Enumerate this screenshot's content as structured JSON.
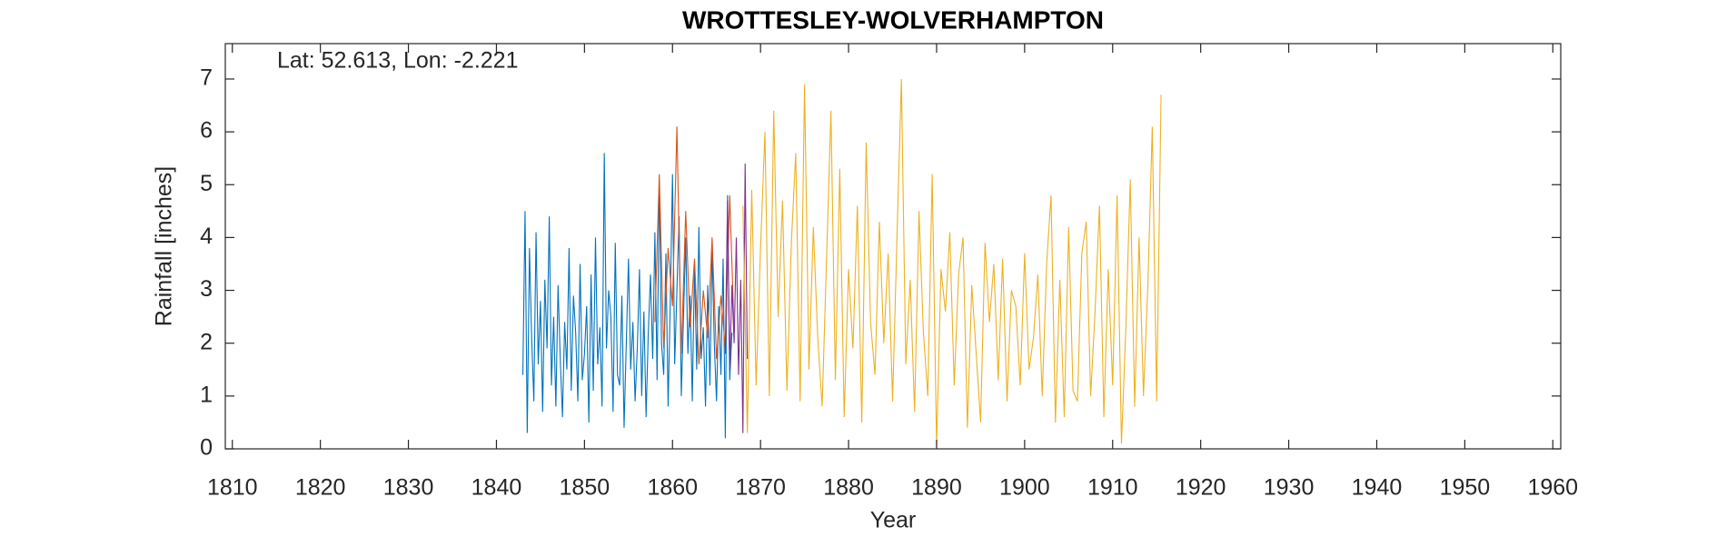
{
  "chart_data": {
    "type": "line",
    "title": "WROTTESLEY-WOLVERHAMPTON",
    "annotation": "Lat: 52.613, Lon: -2.221",
    "x_label": "Year",
    "y_label": "Rainfall [inches]",
    "xlim": [
      1809.2,
      1960.9
    ],
    "ylim": [
      0,
      7.67
    ],
    "xticks": [
      1810,
      1820,
      1830,
      1840,
      1850,
      1860,
      1870,
      1880,
      1890,
      1900,
      1910,
      1920,
      1930,
      1940,
      1950,
      1960
    ],
    "yticks": [
      0,
      1,
      2,
      3,
      4,
      5,
      6,
      7
    ],
    "grid": false,
    "series": [
      {
        "color": "#0072BD",
        "x": [
          1843,
          1843.25,
          1843.5,
          1843.75,
          1844,
          1844.25,
          1844.5,
          1844.75,
          1845,
          1845.25,
          1845.5,
          1845.75,
          1846,
          1846.25,
          1846.5,
          1846.75,
          1847,
          1847.25,
          1847.5,
          1847.75,
          1848,
          1848.25,
          1848.5,
          1848.75,
          1849,
          1849.25,
          1849.5,
          1849.75,
          1850,
          1850.25,
          1850.5,
          1850.75,
          1851,
          1851.25,
          1851.5,
          1851.75,
          1852,
          1852.25,
          1852.5,
          1852.75,
          1853,
          1853.25,
          1853.5,
          1853.75,
          1854,
          1854.25,
          1854.5,
          1854.75,
          1855,
          1855.25,
          1855.5,
          1855.75,
          1856,
          1856.25,
          1856.5,
          1856.75,
          1857,
          1857.25,
          1857.5,
          1857.75,
          1858,
          1858.25,
          1858.5,
          1858.75,
          1859,
          1859.25,
          1859.5,
          1859.75,
          1860,
          1860.25,
          1860.5,
          1860.75,
          1861,
          1861.25,
          1861.5,
          1861.75,
          1862,
          1862.25,
          1862.5,
          1862.75,
          1863,
          1863.25,
          1863.5,
          1863.75,
          1864,
          1864.25,
          1864.5,
          1864.75,
          1865,
          1865.25,
          1865.5,
          1865.75,
          1866,
          1866.25,
          1866.5,
          1866.75
        ],
        "values": [
          1.4,
          4.5,
          0.3,
          3.8,
          2.1,
          0.9,
          4.1,
          1.6,
          2.8,
          0.7,
          3.2,
          1.9,
          4.4,
          1.2,
          2.5,
          0.8,
          3.1,
          1.7,
          0.6,
          2.4,
          1.5,
          3.8,
          1.1,
          2.9,
          2.2,
          0.9,
          3.5,
          1.3,
          1.8,
          2.7,
          0.5,
          3.3,
          1.1,
          4.0,
          1.6,
          2.3,
          0.8,
          5.6,
          1.9,
          3.0,
          2.5,
          0.7,
          3.9,
          1.4,
          1.2,
          2.9,
          0.4,
          2.0,
          3.6,
          1.5,
          2.4,
          0.9,
          1.9,
          3.4,
          1.0,
          2.6,
          0.6,
          2.2,
          3.3,
          1.7,
          4.1,
          1.3,
          5.1,
          2.0,
          1.4,
          3.7,
          0.8,
          2.8,
          5.2,
          1.6,
          3.0,
          4.4,
          1.0,
          2.5,
          4.0,
          1.8,
          2.9,
          0.9,
          3.5,
          1.5,
          4.2,
          1.7,
          2.3,
          0.8,
          3.1,
          1.2,
          3.8,
          2.0,
          0.9,
          2.7,
          1.4,
          3.6,
          0.2,
          4.8,
          1.3,
          2.2
        ]
      },
      {
        "color": "#D95319",
        "x": [
          1858,
          1858.5,
          1859,
          1859.5,
          1860,
          1860.5,
          1861,
          1861.5,
          1862,
          1862.5,
          1863,
          1863.5,
          1864,
          1864.5,
          1865,
          1865.5,
          1866,
          1866.5,
          1867
        ],
        "values": [
          2.4,
          5.2,
          1.9,
          3.8,
          2.7,
          6.1,
          1.8,
          4.5,
          2.3,
          3.6,
          1.6,
          3.0,
          2.1,
          4.0,
          1.7,
          2.9,
          1.9,
          4.8,
          2.2
        ]
      },
      {
        "color": "#7E2F8E",
        "x": [
          1866,
          1866.25,
          1866.5,
          1866.75,
          1867,
          1867.25,
          1867.5,
          1867.75,
          1868,
          1868.25,
          1868.5
        ],
        "values": [
          1.8,
          4.7,
          1.5,
          3.1,
          2.0,
          4.0,
          1.4,
          3.2,
          0.3,
          5.4,
          1.7
        ]
      },
      {
        "color": "#EDB120",
        "x": [
          1868,
          1868.5,
          1869,
          1869.5,
          1870,
          1870.5,
          1871,
          1871.5,
          1872,
          1872.5,
          1873,
          1873.5,
          1874,
          1874.5,
          1875,
          1875.5,
          1876,
          1876.5,
          1877,
          1877.5,
          1878,
          1878.5,
          1879,
          1879.5,
          1880,
          1880.5,
          1881,
          1881.5,
          1882,
          1882.5,
          1883,
          1883.5,
          1884,
          1884.5,
          1885,
          1885.5,
          1886,
          1886.5,
          1887,
          1887.5,
          1888,
          1888.5,
          1889,
          1889.5,
          1890,
          1890.5,
          1891,
          1891.5,
          1892,
          1892.5,
          1893,
          1893.5,
          1894,
          1894.5,
          1895,
          1895.5,
          1896,
          1896.5,
          1897,
          1897.5,
          1898,
          1898.5,
          1899,
          1899.5,
          1900,
          1900.5,
          1901,
          1901.5,
          1902,
          1902.5,
          1903,
          1903.5,
          1904,
          1904.5,
          1905,
          1905.5,
          1906,
          1906.5,
          1907,
          1907.5,
          1908,
          1908.5,
          1909,
          1909.5,
          1910,
          1910.5,
          1911,
          1911.5,
          1912,
          1912.5,
          1913,
          1913.5,
          1914,
          1914.5,
          1915,
          1915.5
        ],
        "values": [
          4.6,
          0.3,
          4.9,
          1.2,
          3.8,
          6.0,
          1.0,
          6.4,
          2.5,
          4.7,
          1.1,
          3.9,
          5.6,
          0.9,
          6.9,
          1.5,
          4.2,
          2.1,
          0.8,
          3.6,
          6.4,
          1.3,
          5.3,
          0.6,
          3.4,
          1.9,
          4.6,
          0.5,
          5.8,
          2.4,
          1.4,
          4.3,
          2.0,
          3.7,
          0.9,
          4.0,
          7.0,
          1.6,
          3.2,
          0.7,
          4.5,
          2.2,
          1.0,
          5.2,
          0.05,
          3.4,
          2.6,
          4.1,
          1.2,
          3.3,
          4.0,
          0.4,
          3.1,
          1.8,
          0.5,
          3.9,
          2.4,
          3.5,
          1.3,
          3.6,
          0.9,
          3.0,
          2.7,
          1.2,
          3.7,
          1.5,
          2.1,
          3.3,
          1.0,
          3.5,
          4.8,
          0.5,
          3.2,
          0.6,
          4.2,
          1.1,
          0.9,
          3.7,
          4.3,
          1.0,
          2.6,
          4.6,
          0.6,
          3.4,
          1.2,
          4.8,
          0.1,
          2.3,
          5.1,
          0.8,
          4.0,
          1.0,
          3.1,
          6.1,
          0.9,
          6.7
        ]
      }
    ]
  }
}
